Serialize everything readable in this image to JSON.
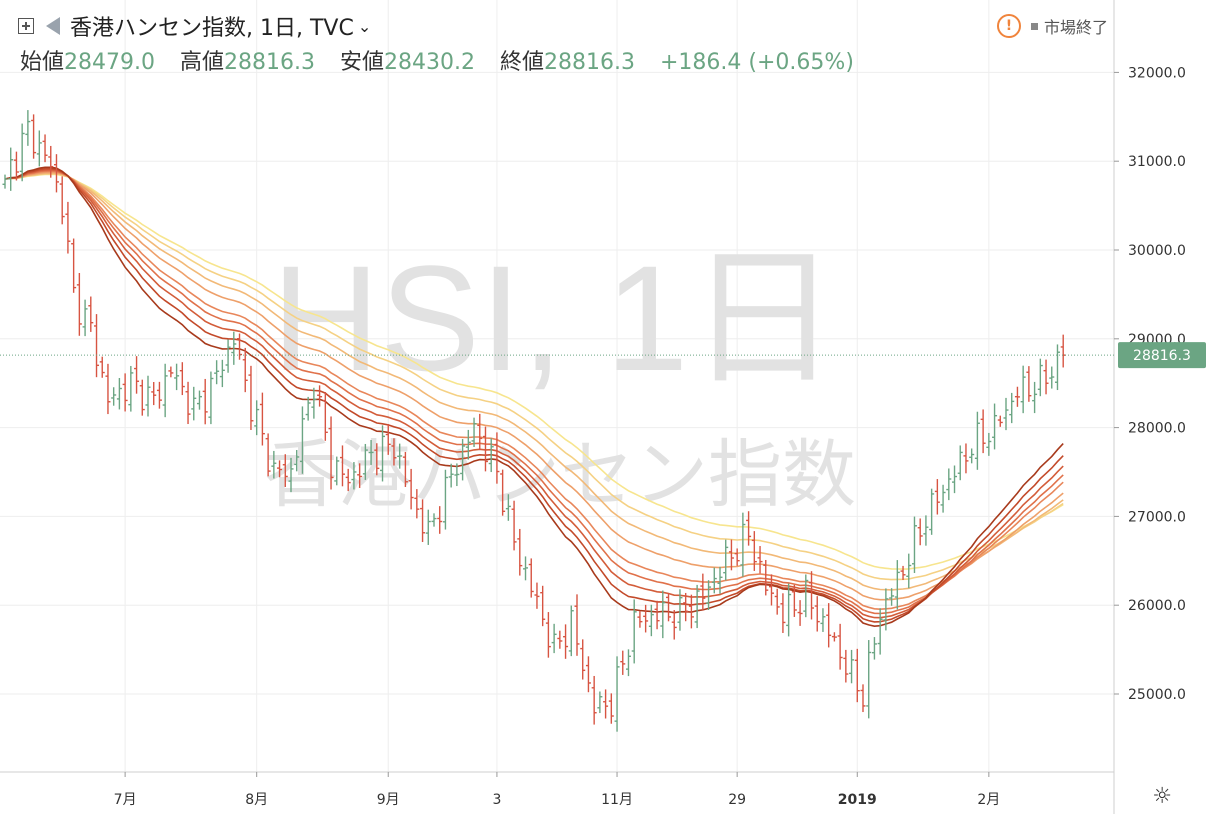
{
  "header": {
    "title": "香港ハンセン指数, 1日, TVC",
    "chevron": "⌄",
    "ohlc": [
      {
        "label": "始値",
        "value": "28479.0"
      },
      {
        "label": "高値",
        "value": "28816.3"
      },
      {
        "label": "安値",
        "value": "28430.2"
      },
      {
        "label": "終値",
        "value": "28816.3"
      }
    ],
    "change": "+186.4 (+0.65%)",
    "market_status": "市場終了",
    "warning_symbol": "!"
  },
  "watermark": {
    "line1": "HSI, 1日",
    "line2": "香港ハンセン指数"
  },
  "colors": {
    "up": "#6ba583",
    "down": "#d75442",
    "grid": "#eeeeee",
    "price_tag": "#6ba583",
    "ribbon": [
      "#a83a1c",
      "#c34a2a",
      "#d35d3a",
      "#e0714a",
      "#e8865a",
      "#eea06a",
      "#f2b977",
      "#f5d184",
      "#f7e58e"
    ]
  },
  "gear_icon": "☼",
  "chart_data": {
    "type": "ohlc",
    "price_axis": {
      "ticks": [
        25000,
        26000,
        27000,
        28000,
        29000,
        30000,
        31000,
        32000
      ],
      "tick_labels": [
        "25000.0",
        "26000.0",
        "27000.0",
        "28000.0",
        "29000.0",
        "30000.0",
        "31000.0",
        "32000.0"
      ],
      "range": [
        24000,
        32900
      ]
    },
    "time_axis": {
      "labels": [
        {
          "text": "7月",
          "i": 21
        },
        {
          "text": "8月",
          "i": 44
        },
        {
          "text": "9月",
          "i": 67
        },
        {
          "text": "3",
          "i": 86
        },
        {
          "text": "11月",
          "i": 107
        },
        {
          "text": "29",
          "i": 128
        },
        {
          "text": "2019",
          "i": 149,
          "bold": true
        },
        {
          "text": "2月",
          "i": 172
        }
      ],
      "count": 186
    },
    "last_price": 28816.3,
    "last_price_label": "28816.3",
    "close_anchors": [
      [
        0,
        30800
      ],
      [
        4,
        31350
      ],
      [
        8,
        30950
      ],
      [
        10,
        30500
      ],
      [
        12,
        29500
      ],
      [
        15,
        29100
      ],
      [
        18,
        28300
      ],
      [
        22,
        28500
      ],
      [
        26,
        28300
      ],
      [
        29,
        28650
      ],
      [
        33,
        28200
      ],
      [
        36,
        28450
      ],
      [
        40,
        29000
      ],
      [
        43,
        28250
      ],
      [
        47,
        27500
      ],
      [
        50,
        27500
      ],
      [
        54,
        28500
      ],
      [
        57,
        27600
      ],
      [
        60,
        27400
      ],
      [
        64,
        27700
      ],
      [
        68,
        27800
      ],
      [
        71,
        27200
      ],
      [
        74,
        26800
      ],
      [
        78,
        27450
      ],
      [
        82,
        28000
      ],
      [
        86,
        27500
      ],
      [
        89,
        26700
      ],
      [
        92,
        26200
      ],
      [
        96,
        25500
      ],
      [
        99,
        25800
      ],
      [
        103,
        24850
      ],
      [
        106,
        24900
      ],
      [
        110,
        25800
      ],
      [
        114,
        25900
      ],
      [
        118,
        25900
      ],
      [
        122,
        26100
      ],
      [
        126,
        26500
      ],
      [
        130,
        26800
      ],
      [
        133,
        26200
      ],
      [
        136,
        25900
      ],
      [
        140,
        26100
      ],
      [
        144,
        25700
      ],
      [
        148,
        25200
      ],
      [
        150,
        25000
      ],
      [
        153,
        25900
      ],
      [
        157,
        26400
      ],
      [
        161,
        27000
      ],
      [
        165,
        27400
      ],
      [
        169,
        27800
      ],
      [
        173,
        28000
      ],
      [
        177,
        28400
      ],
      [
        181,
        28500
      ],
      [
        185,
        28816
      ]
    ],
    "ema_periods": [
      30,
      35,
      40,
      45,
      50,
      60,
      70,
      80,
      90
    ],
    "ema_start": 30800
  }
}
